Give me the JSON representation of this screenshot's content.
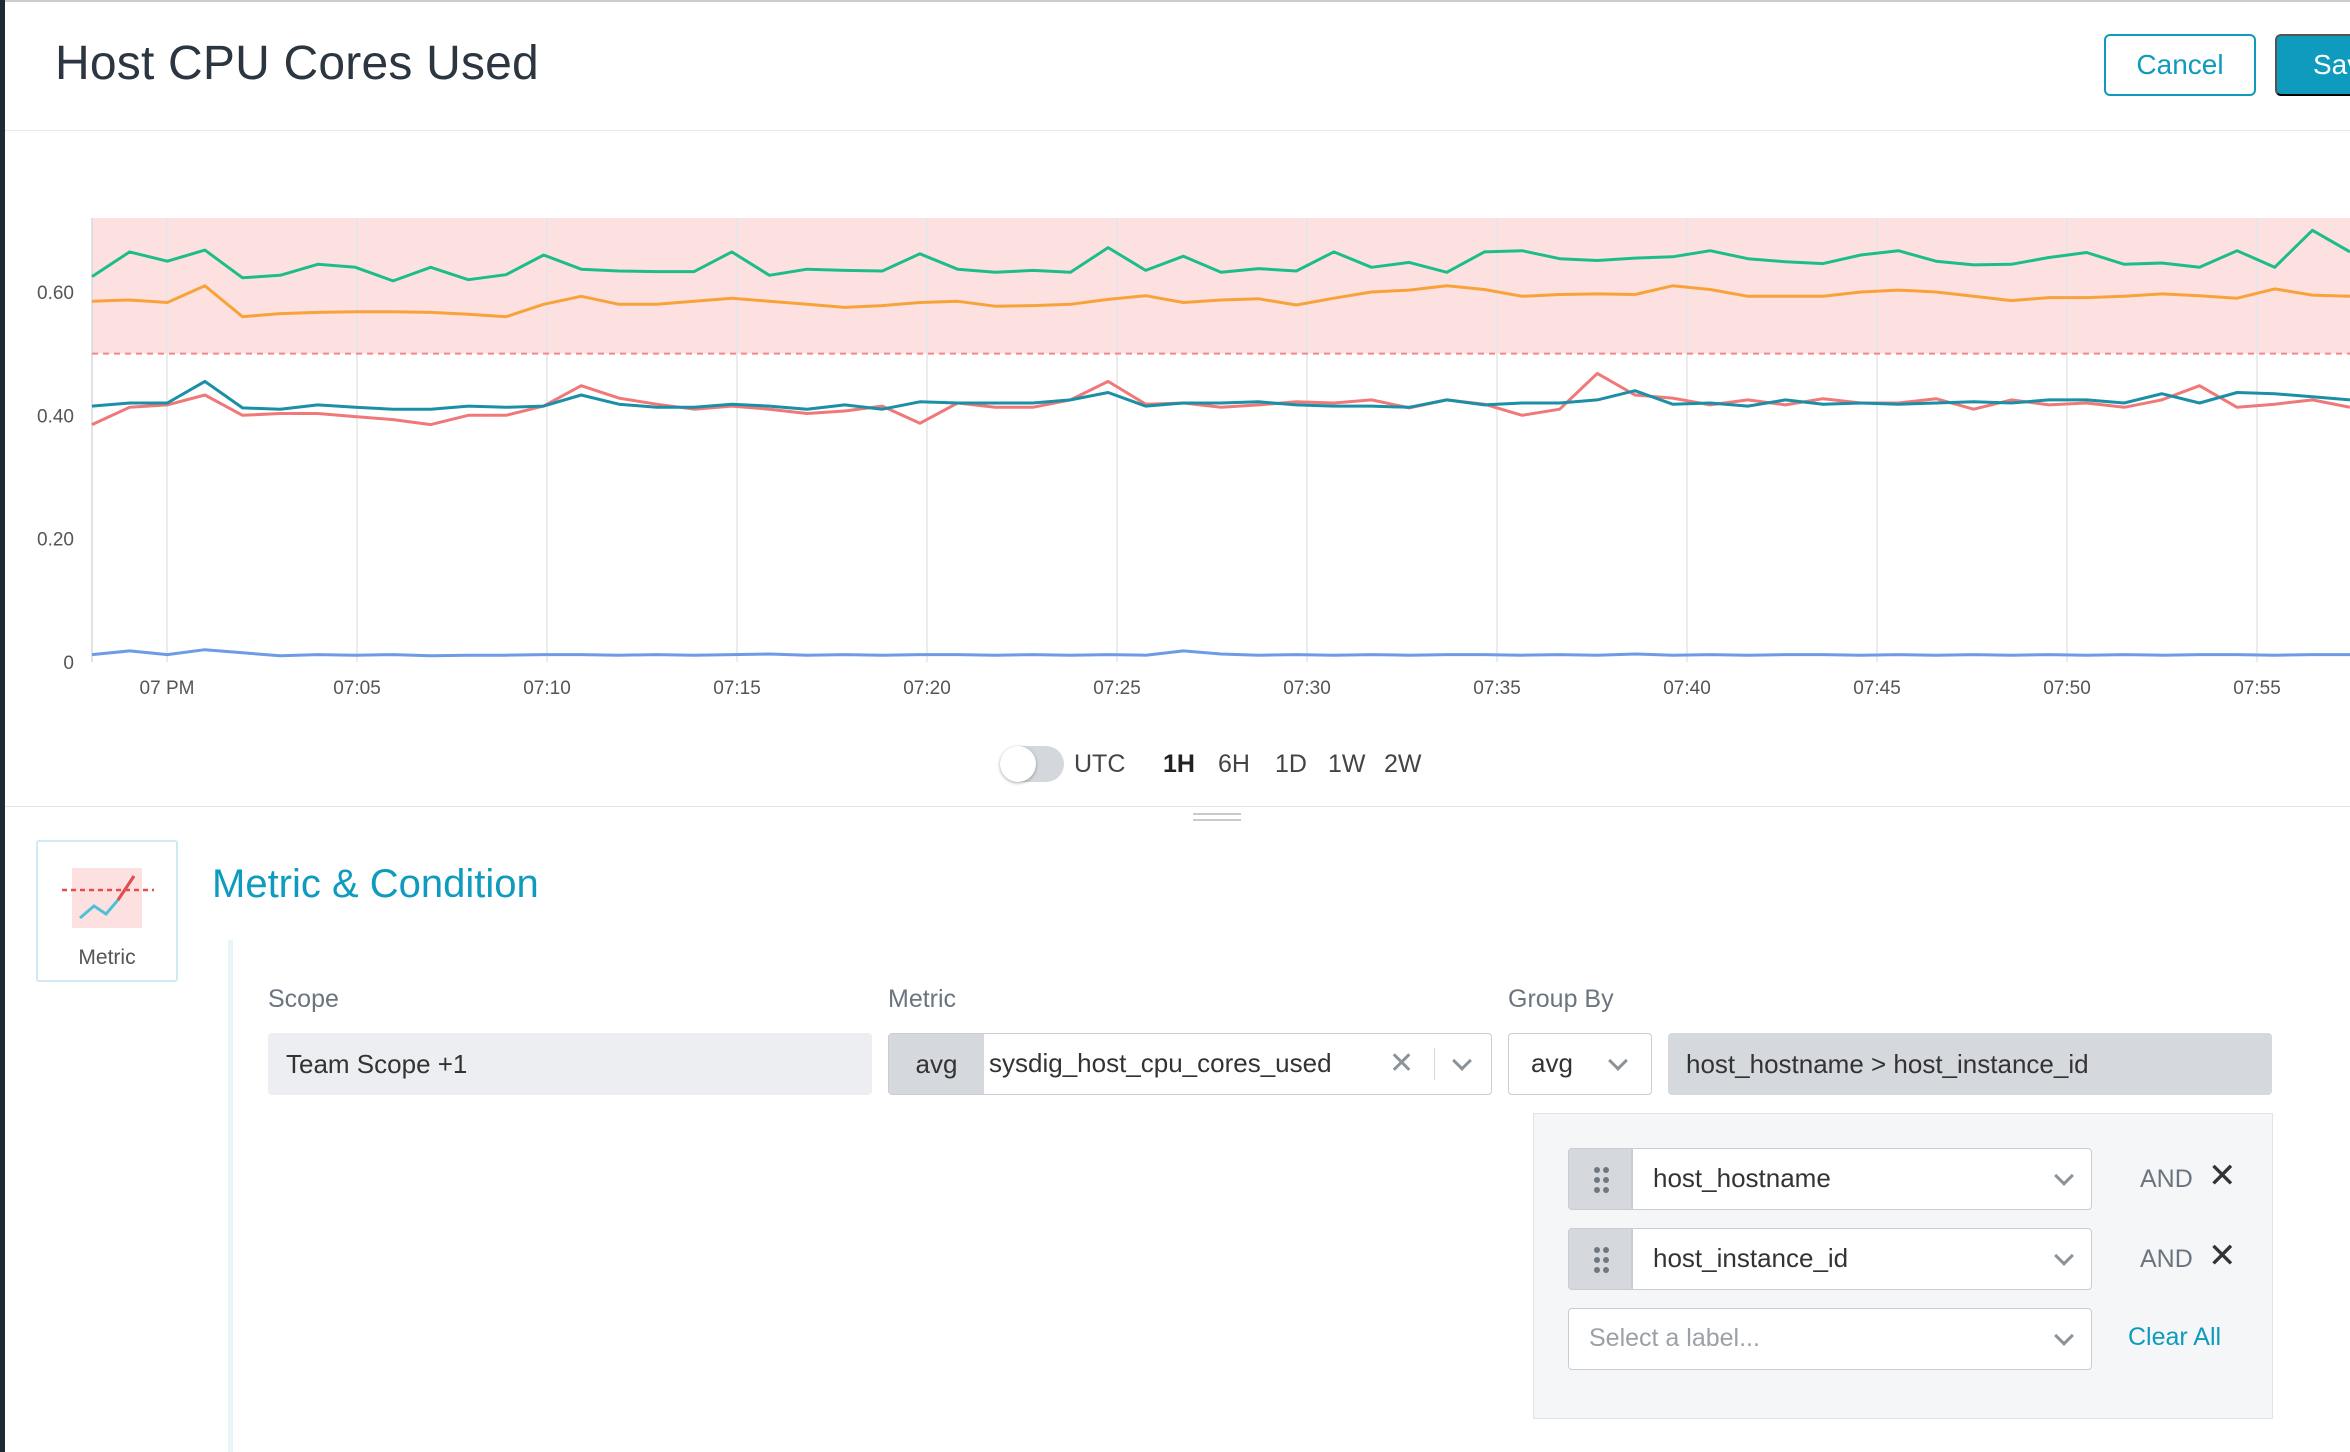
{
  "header": {
    "title": "Host CPU Cores Used",
    "cancel_label": "Cancel",
    "save_label": "Sav"
  },
  "colors": {
    "accent": "#0f9bbd",
    "threshold_fill": "#fde1e1",
    "threshold_line": "#f08a8a"
  },
  "chart_data": {
    "type": "line",
    "title": "",
    "xlabel": "",
    "ylabel": "",
    "ylim": [
      0,
      0.72
    ],
    "y_ticks": [
      {
        "value": 0,
        "label": "0"
      },
      {
        "value": 0.2,
        "label": "0.20"
      },
      {
        "value": 0.4,
        "label": "0.40"
      },
      {
        "value": 0.6,
        "label": "0.60"
      }
    ],
    "x_ticks": [
      "07 PM",
      "07:05",
      "07:10",
      "07:15",
      "07:20",
      "07:25",
      "07:30",
      "07:35",
      "07:40",
      "07:45",
      "07:50",
      "07:55"
    ],
    "threshold": 0.5,
    "threshold_band": [
      0.5,
      0.72
    ],
    "legend": "none",
    "grid": "vertical",
    "series": [
      {
        "color": "#1dbd8a",
        "values": [
          0.625,
          0.665,
          0.65,
          0.668,
          0.623,
          0.627,
          0.645,
          0.64,
          0.618,
          0.64,
          0.62,
          0.628,
          0.66,
          0.637,
          0.634,
          0.633,
          0.633,
          0.665,
          0.627,
          0.637,
          0.635,
          0.634,
          0.662,
          0.637,
          0.632,
          0.635,
          0.632,
          0.672,
          0.635,
          0.658,
          0.632,
          0.638,
          0.634,
          0.665,
          0.64,
          0.648,
          0.632,
          0.665,
          0.667,
          0.654,
          0.651,
          0.655,
          0.657,
          0.667,
          0.654,
          0.649,
          0.646,
          0.66,
          0.667,
          0.65,
          0.644,
          0.645,
          0.656,
          0.664,
          0.645,
          0.647,
          0.64,
          0.667,
          0.64,
          0.7,
          0.665
        ]
      },
      {
        "color": "#f7a33a",
        "values": [
          0.585,
          0.587,
          0.583,
          0.61,
          0.56,
          0.565,
          0.567,
          0.568,
          0.568,
          0.567,
          0.564,
          0.56,
          0.58,
          0.593,
          0.58,
          0.58,
          0.585,
          0.59,
          0.585,
          0.58,
          0.575,
          0.578,
          0.583,
          0.585,
          0.577,
          0.578,
          0.58,
          0.588,
          0.594,
          0.583,
          0.587,
          0.589,
          0.579,
          0.59,
          0.6,
          0.603,
          0.61,
          0.604,
          0.593,
          0.596,
          0.597,
          0.596,
          0.61,
          0.604,
          0.593,
          0.593,
          0.593,
          0.6,
          0.603,
          0.6,
          0.593,
          0.586,
          0.591,
          0.591,
          0.593,
          0.597,
          0.594,
          0.59,
          0.605,
          0.595,
          0.593
        ]
      },
      {
        "color": "#f07878",
        "values": [
          0.385,
          0.413,
          0.417,
          0.433,
          0.4,
          0.403,
          0.403,
          0.398,
          0.393,
          0.385,
          0.4,
          0.4,
          0.415,
          0.448,
          0.428,
          0.418,
          0.41,
          0.415,
          0.41,
          0.403,
          0.407,
          0.415,
          0.387,
          0.42,
          0.413,
          0.413,
          0.425,
          0.455,
          0.418,
          0.42,
          0.413,
          0.417,
          0.422,
          0.42,
          0.425,
          0.412,
          0.425,
          0.418,
          0.4,
          0.41,
          0.468,
          0.433,
          0.428,
          0.417,
          0.425,
          0.417,
          0.427,
          0.42,
          0.42,
          0.427,
          0.41,
          0.425,
          0.417,
          0.42,
          0.413,
          0.425,
          0.448,
          0.413,
          0.418,
          0.425,
          0.413
        ]
      },
      {
        "color": "#1a8fa6",
        "values": [
          0.415,
          0.42,
          0.42,
          0.455,
          0.412,
          0.41,
          0.417,
          0.413,
          0.41,
          0.41,
          0.415,
          0.413,
          0.415,
          0.433,
          0.418,
          0.413,
          0.413,
          0.418,
          0.415,
          0.41,
          0.417,
          0.41,
          0.422,
          0.42,
          0.42,
          0.42,
          0.425,
          0.437,
          0.415,
          0.42,
          0.42,
          0.422,
          0.417,
          0.415,
          0.415,
          0.413,
          0.425,
          0.417,
          0.42,
          0.42,
          0.425,
          0.44,
          0.418,
          0.42,
          0.415,
          0.425,
          0.418,
          0.42,
          0.418,
          0.42,
          0.422,
          0.42,
          0.425,
          0.425,
          0.42,
          0.435,
          0.42,
          0.437,
          0.435,
          0.43,
          0.425
        ]
      },
      {
        "color": "#6e9be6",
        "values": [
          0.012,
          0.018,
          0.012,
          0.02,
          0.015,
          0.01,
          0.012,
          0.011,
          0.012,
          0.01,
          0.011,
          0.011,
          0.012,
          0.012,
          0.011,
          0.012,
          0.011,
          0.012,
          0.013,
          0.011,
          0.012,
          0.011,
          0.012,
          0.012,
          0.011,
          0.012,
          0.011,
          0.012,
          0.011,
          0.018,
          0.013,
          0.011,
          0.012,
          0.011,
          0.012,
          0.011,
          0.012,
          0.012,
          0.011,
          0.012,
          0.011,
          0.013,
          0.011,
          0.012,
          0.011,
          0.012,
          0.012,
          0.011,
          0.012,
          0.011,
          0.012,
          0.011,
          0.012,
          0.011,
          0.012,
          0.011,
          0.012,
          0.012,
          0.011,
          0.012,
          0.012
        ]
      }
    ]
  },
  "time_controls": {
    "utc_label": "UTC",
    "utc_on": false,
    "ranges": [
      "1H",
      "6H",
      "1D",
      "1W",
      "2W"
    ],
    "active_range": "1H"
  },
  "section": {
    "tile_label": "Metric",
    "title": "Metric & Condition"
  },
  "scope": {
    "label": "Scope",
    "value": "Team Scope +1"
  },
  "metric": {
    "label": "Metric",
    "aggregation": "avg",
    "name": "sysdig_host_cpu_cores_used",
    "clear_icon": "x-icon"
  },
  "group_by": {
    "label": "Group By",
    "aggregation": "avg",
    "value": "host_hostname > host_instance_id",
    "rows": [
      {
        "label": "host_hostname",
        "joiner": "AND"
      },
      {
        "label": "host_instance_id",
        "joiner": "AND"
      }
    ],
    "new_placeholder": "Select a label...",
    "clear_all": "Clear All"
  }
}
